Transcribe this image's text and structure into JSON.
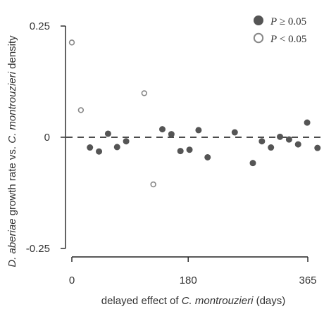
{
  "chart_data": {
    "type": "scatter",
    "xlabel": {
      "pre": "delayed effect of ",
      "italic": "C. montrouzieri",
      "post": " (days)"
    },
    "ylabel": {
      "italic1": "D. aberiae",
      "mid": " growth rate vs. ",
      "italic2": "C. montrouzieri",
      "post": " density"
    },
    "xlim": [
      -5,
      370
    ],
    "ylim": [
      -0.25,
      0.25
    ],
    "x_ticks": [
      0,
      180,
      365
    ],
    "x_tick_labels": [
      "0",
      "180",
      "365"
    ],
    "y_ticks": [
      0.25,
      0,
      -0.25
    ],
    "y_tick_labels": [
      "0.25",
      "0",
      "-0.25"
    ],
    "reference_line": {
      "y": 0,
      "style": "dashed"
    },
    "legend": {
      "position": "top-right",
      "entries": [
        {
          "symbol": "filled",
          "label_var": "P",
          "label_op": " ≥ 0.05"
        },
        {
          "symbol": "open",
          "label_var": "P",
          "label_op": " < 0.05"
        }
      ]
    },
    "series": [
      {
        "symbol": "filled",
        "color": "#555555",
        "x": [
          28,
          42,
          56,
          70,
          84,
          140,
          154,
          168,
          182,
          196,
          210,
          252,
          280,
          294,
          308,
          322,
          336,
          350,
          364
        ],
        "y": [
          -0.023,
          -0.032,
          0.008,
          -0.022,
          -0.009,
          0.018,
          0.007,
          -0.031,
          -0.028,
          0.016,
          -0.045,
          0.011,
          -0.058,
          -0.009,
          -0.023,
          0.001,
          -0.005,
          -0.016,
          0.033
        ]
      },
      {
        "symbol": "filled",
        "color": "#555555",
        "x": [
          380
        ],
        "y": [
          -0.024
        ]
      },
      {
        "symbol": "open",
        "color": "#888888",
        "x": [
          0,
          14,
          112,
          126
        ],
        "y": [
          0.213,
          0.061,
          0.099,
          -0.106
        ]
      }
    ]
  }
}
